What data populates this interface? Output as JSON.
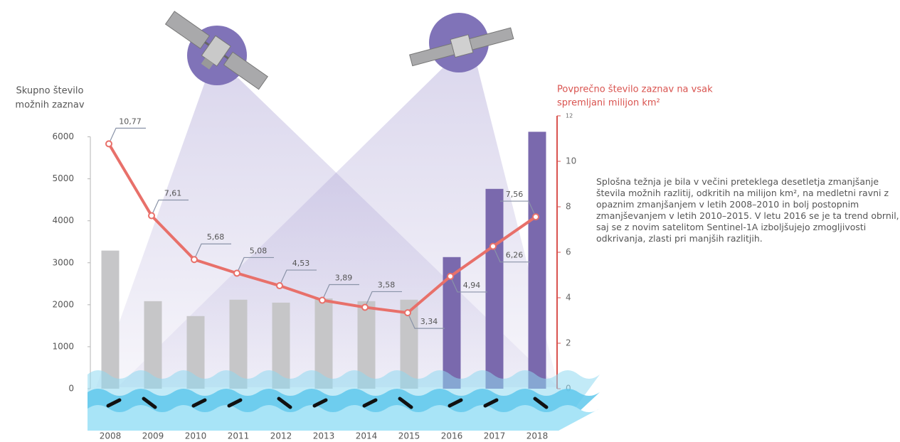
{
  "chart_data": {
    "type": "bar-line",
    "y_label": [
      "Skupno število",
      "možnih zaznav"
    ],
    "y2_label": [
      "Povprečno število zaznav na vsak",
      "spremljani milijon km²"
    ],
    "annotation": "Splošna težnja je bila v večini preteklega desetletja zmanjšanje števila možnih razlitij, odkritih na milijon km², na medletni ravni z opaznim zmanjšanjem v letih 2008–2010 in bolj postopnim zmanjševanjem v letih 2010–2015. V letu 2016 se je ta trend obrnil, saj se z novim satelitom Sentinel-1A izboljšujejo zmogljivosti odkrivanja, zlasti pri manjših razlitjih.",
    "categories": [
      "2008",
      "2009",
      "2010",
      "2011",
      "2012",
      "2013",
      "2014",
      "2015",
      "2016",
      "2017",
      "2018"
    ],
    "series": [
      {
        "type": "bar",
        "axis": "y",
        "values": [
          3290,
          2085,
          1730,
          2120,
          2050,
          2150,
          2085,
          2120,
          3135,
          4760,
          6120
        ],
        "colors": [
          "#c6c6c8",
          "#c6c6c8",
          "#c6c6c8",
          "#c6c6c8",
          "#c6c6c8",
          "#c6c6c8",
          "#c6c6c8",
          "#c6c6c8",
          "#7a69ad",
          "#7a69ad",
          "#7a69ad"
        ]
      },
      {
        "type": "line",
        "axis": "y2",
        "color": "#e8706a",
        "values": [
          10.77,
          7.61,
          5.68,
          5.08,
          4.53,
          3.89,
          3.58,
          3.34,
          4.94,
          6.26,
          7.56
        ],
        "value_labels": [
          "10,77",
          "7,61",
          "5,68",
          "5,08",
          "4,53",
          "3,89",
          "3,58",
          "3,34",
          "4,94",
          "6,26",
          "7,56"
        ]
      }
    ],
    "ylim": [
      0,
      6500
    ],
    "yticks": [
      0,
      1000,
      2000,
      3000,
      4000,
      5000,
      6000
    ],
    "y2lim": [
      0,
      12
    ],
    "y2ticks": [
      0,
      2,
      4,
      6,
      8,
      10,
      12
    ],
    "y2_color": "#d9534f"
  }
}
